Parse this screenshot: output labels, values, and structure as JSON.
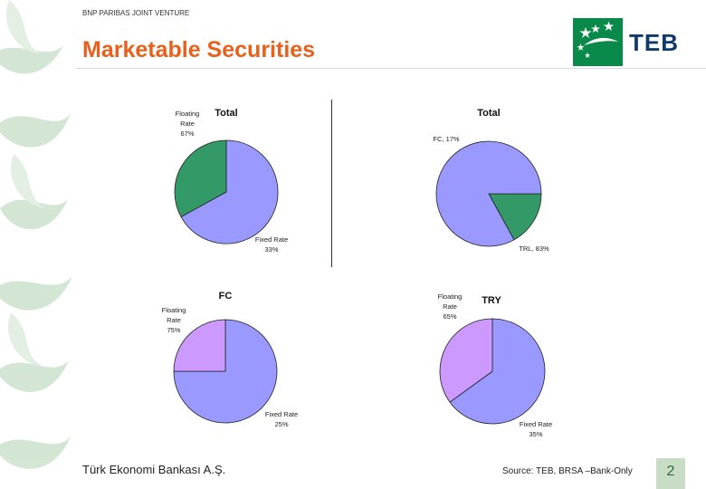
{
  "header": {
    "joint_venture": "BNP PARIBAS JOINT VENTURE",
    "title": "Marketable Securities",
    "logo_text": "TEB"
  },
  "chart_data": [
    {
      "type": "pie",
      "title": "Total",
      "labels": [
        [
          "Floating",
          "Rate",
          "67%"
        ],
        [
          "Fixed Rate",
          "33%"
        ]
      ],
      "values": [
        67,
        33
      ],
      "colors": [
        "#9999ff",
        "#339966"
      ]
    },
    {
      "type": "pie",
      "title": "Total",
      "labels": [
        [
          "FC, 17%"
        ],
        [
          "TRL, 83%"
        ]
      ],
      "values": [
        17,
        83
      ],
      "colors": [
        "#339966",
        "#9999ff"
      ]
    },
    {
      "type": "pie",
      "title": "FC",
      "labels": [
        [
          "Floating",
          "Rate",
          "75%"
        ],
        [
          "Fixed Rate",
          "25%"
        ]
      ],
      "values": [
        75,
        25
      ],
      "colors": [
        "#9999ff",
        "#cc99ff"
      ]
    },
    {
      "type": "pie",
      "title": "TRY",
      "labels": [
        [
          "Floating",
          "Rate",
          "65%"
        ],
        [
          "Fixed Rate",
          "35%"
        ]
      ],
      "values": [
        65,
        35
      ],
      "colors": [
        "#9999ff",
        "#cc99ff"
      ]
    }
  ],
  "footer": {
    "bank_name": "Türk Ekonomi Bankası A.Ş.",
    "source": "Source: TEB, BRSA –Bank-Only",
    "page_number": "2"
  }
}
